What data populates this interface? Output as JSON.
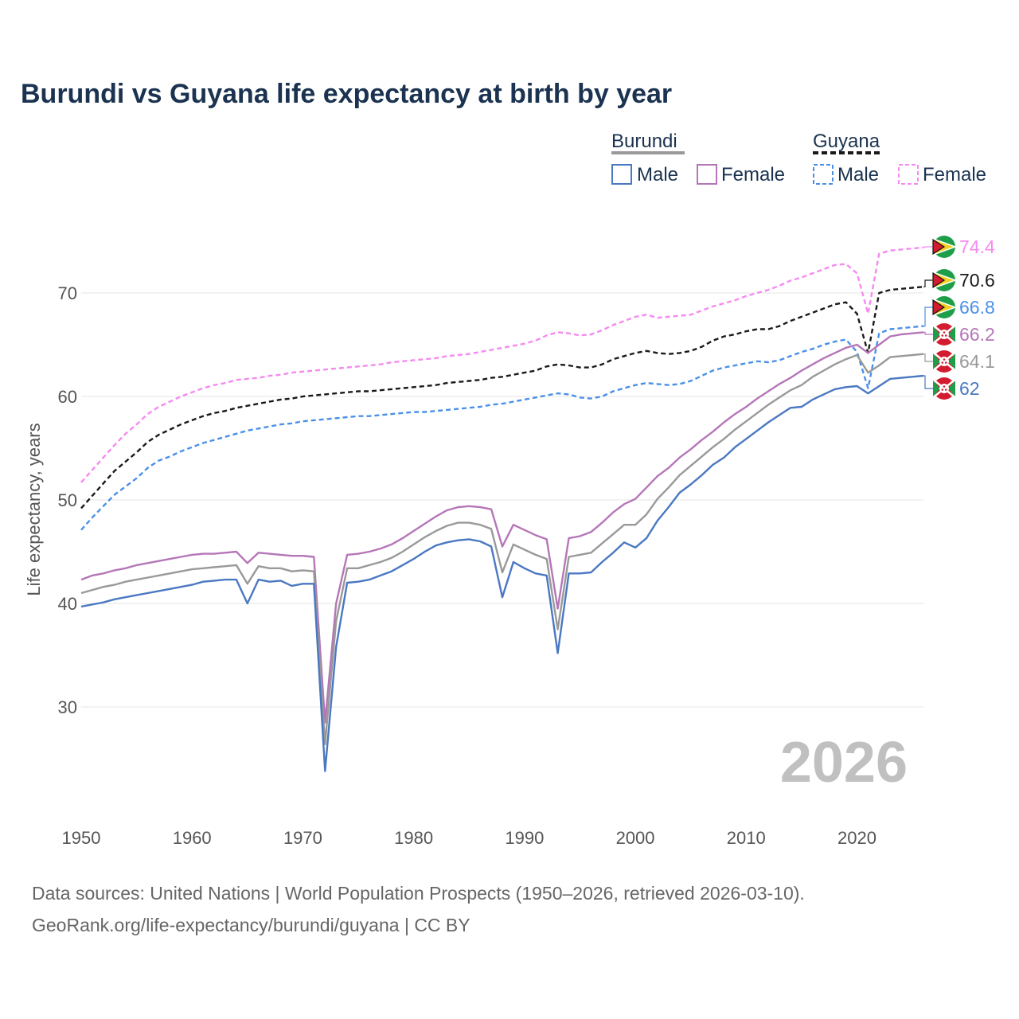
{
  "title": "Burundi vs Guyana life expectancy at birth by year",
  "legend": {
    "burundi_label": "Burundi",
    "guyana_label": "Guyana",
    "male_label": "Male",
    "female_label": "Female"
  },
  "current_year": "2026",
  "sources": {
    "line1": "Data sources: United Nations | World Population Prospects (1950–2026, retrieved 2026-03-10).",
    "line2": "GeoRank.org/life-expectancy/burundi/guyana | CC BY"
  },
  "colors": {
    "burundi_male": "#4a78c2",
    "burundi_female": "#b576b8",
    "burundi_total": "#999999",
    "guyana_male": "#4a90e8",
    "guyana_female": "#f58af0",
    "guyana_total": "#1a1a1a",
    "grid": "#e6e6e6"
  },
  "chart_data": {
    "type": "line",
    "ylabel": "Life expectancy, years",
    "xlabel": "",
    "xlim": [
      1950,
      2026
    ],
    "ylim": [
      20,
      80
    ],
    "x_ticks": [
      1950,
      1960,
      1970,
      1980,
      1990,
      2000,
      2010,
      2020
    ],
    "y_ticks": [
      30,
      40,
      50,
      60,
      70
    ],
    "grid": true,
    "x": [
      1950,
      1951,
      1952,
      1953,
      1954,
      1955,
      1956,
      1957,
      1958,
      1959,
      1960,
      1961,
      1962,
      1963,
      1964,
      1965,
      1966,
      1967,
      1968,
      1969,
      1970,
      1971,
      1972,
      1973,
      1974,
      1975,
      1976,
      1977,
      1978,
      1979,
      1980,
      1981,
      1982,
      1983,
      1984,
      1985,
      1986,
      1987,
      1988,
      1989,
      1990,
      1991,
      1992,
      1993,
      1994,
      1995,
      1996,
      1997,
      1998,
      1999,
      2000,
      2001,
      2002,
      2003,
      2004,
      2005,
      2006,
      2007,
      2008,
      2009,
      2010,
      2011,
      2012,
      2013,
      2014,
      2015,
      2016,
      2017,
      2018,
      2019,
      2020,
      2021,
      2022,
      2023,
      2024,
      2025,
      2026
    ],
    "series": [
      {
        "name": "Guyana Female",
        "country": "Guyana",
        "sex": "Female",
        "style": "dashed",
        "end_label": "74.4",
        "values": [
          51.7,
          52.9,
          54.1,
          55.3,
          56.4,
          57.3,
          58.3,
          59.0,
          59.5,
          60.0,
          60.4,
          60.8,
          61.1,
          61.3,
          61.6,
          61.7,
          61.8,
          62.0,
          62.1,
          62.3,
          62.4,
          62.5,
          62.6,
          62.7,
          62.8,
          62.9,
          63.0,
          63.1,
          63.3,
          63.4,
          63.5,
          63.6,
          63.7,
          63.9,
          64.0,
          64.1,
          64.3,
          64.5,
          64.7,
          64.9,
          65.1,
          65.4,
          65.9,
          66.2,
          66.1,
          65.9,
          66.0,
          66.4,
          66.9,
          67.3,
          67.7,
          67.9,
          67.6,
          67.7,
          67.8,
          67.9,
          68.3,
          68.7,
          69.0,
          69.3,
          69.7,
          70.0,
          70.3,
          70.7,
          71.2,
          71.5,
          71.9,
          72.3,
          72.7,
          72.8,
          71.9,
          68.0,
          73.8,
          74.1,
          74.2,
          74.3,
          74.4
        ]
      },
      {
        "name": "Guyana Total",
        "country": "Guyana",
        "sex": "Total",
        "style": "dashed",
        "end_label": "70.6",
        "values": [
          49.2,
          50.4,
          51.6,
          52.8,
          53.7,
          54.6,
          55.6,
          56.3,
          56.8,
          57.3,
          57.7,
          58.1,
          58.4,
          58.6,
          58.9,
          59.1,
          59.3,
          59.5,
          59.7,
          59.8,
          60.0,
          60.1,
          60.2,
          60.3,
          60.4,
          60.5,
          60.5,
          60.6,
          60.7,
          60.8,
          60.9,
          61.0,
          61.1,
          61.3,
          61.4,
          61.5,
          61.6,
          61.8,
          61.9,
          62.1,
          62.3,
          62.5,
          62.9,
          63.1,
          63.0,
          62.8,
          62.8,
          63.1,
          63.6,
          63.9,
          64.2,
          64.4,
          64.2,
          64.1,
          64.2,
          64.4,
          64.8,
          65.4,
          65.8,
          66.0,
          66.3,
          66.5,
          66.5,
          66.8,
          67.3,
          67.7,
          68.1,
          68.5,
          68.9,
          69.1,
          68.0,
          64.2,
          70.0,
          70.3,
          70.4,
          70.5,
          70.6
        ]
      },
      {
        "name": "Guyana Male",
        "country": "Guyana",
        "sex": "Male",
        "style": "dashed",
        "end_label": "66.8",
        "values": [
          47.1,
          48.3,
          49.4,
          50.5,
          51.3,
          52.1,
          53.1,
          53.8,
          54.2,
          54.7,
          55.1,
          55.5,
          55.8,
          56.1,
          56.4,
          56.7,
          56.9,
          57.1,
          57.3,
          57.4,
          57.6,
          57.7,
          57.8,
          57.9,
          58.0,
          58.1,
          58.1,
          58.2,
          58.3,
          58.4,
          58.5,
          58.5,
          58.6,
          58.7,
          58.8,
          58.9,
          59.0,
          59.2,
          59.3,
          59.5,
          59.7,
          59.9,
          60.1,
          60.3,
          60.2,
          59.9,
          59.8,
          60.0,
          60.5,
          60.8,
          61.1,
          61.3,
          61.2,
          61.1,
          61.2,
          61.5,
          62.0,
          62.5,
          62.8,
          63.0,
          63.2,
          63.4,
          63.3,
          63.5,
          63.9,
          64.3,
          64.6,
          65.0,
          65.3,
          65.5,
          64.3,
          60.8,
          66.1,
          66.5,
          66.6,
          66.7,
          66.8
        ]
      },
      {
        "name": "Burundi Female",
        "country": "Burundi",
        "sex": "Female",
        "style": "solid",
        "end_label": "66.2",
        "values": [
          42.3,
          42.7,
          42.9,
          43.2,
          43.4,
          43.7,
          43.9,
          44.1,
          44.3,
          44.5,
          44.7,
          44.8,
          44.8,
          44.9,
          45.0,
          43.9,
          44.9,
          44.8,
          44.7,
          44.6,
          44.6,
          44.5,
          28.5,
          40.0,
          44.7,
          44.8,
          45.0,
          45.3,
          45.7,
          46.3,
          47.0,
          47.7,
          48.4,
          49.0,
          49.3,
          49.4,
          49.3,
          49.1,
          45.5,
          47.6,
          47.1,
          46.6,
          46.2,
          39.5,
          46.3,
          46.5,
          46.9,
          47.8,
          48.8,
          49.6,
          50.1,
          51.2,
          52.3,
          53.1,
          54.1,
          54.9,
          55.8,
          56.6,
          57.5,
          58.3,
          59.0,
          59.8,
          60.5,
          61.2,
          61.8,
          62.5,
          63.1,
          63.7,
          64.2,
          64.7,
          65.0,
          64.2,
          65.0,
          65.8,
          66.0,
          66.1,
          66.2
        ]
      },
      {
        "name": "Burundi Total",
        "country": "Burundi",
        "sex": "Total",
        "style": "solid",
        "end_label": "64.1",
        "values": [
          41.0,
          41.3,
          41.6,
          41.8,
          42.1,
          42.3,
          42.5,
          42.7,
          42.9,
          43.1,
          43.3,
          43.4,
          43.5,
          43.6,
          43.7,
          41.9,
          43.6,
          43.4,
          43.4,
          43.1,
          43.2,
          43.1,
          26.4,
          38.3,
          43.4,
          43.4,
          43.7,
          44.0,
          44.4,
          45.0,
          45.7,
          46.4,
          47.0,
          47.5,
          47.8,
          47.8,
          47.6,
          47.2,
          43.0,
          45.7,
          45.2,
          44.7,
          44.3,
          37.5,
          44.5,
          44.7,
          44.9,
          45.8,
          46.7,
          47.6,
          47.6,
          48.6,
          50.1,
          51.2,
          52.4,
          53.3,
          54.2,
          55.1,
          55.9,
          56.8,
          57.6,
          58.4,
          59.2,
          59.9,
          60.6,
          61.1,
          61.9,
          62.5,
          63.1,
          63.6,
          64.0,
          62.3,
          63.0,
          63.8,
          63.9,
          64.0,
          64.1
        ]
      },
      {
        "name": "Burundi Male",
        "country": "Burundi",
        "sex": "Male",
        "style": "solid",
        "end_label": "62",
        "values": [
          39.7,
          39.9,
          40.1,
          40.4,
          40.6,
          40.8,
          41.0,
          41.2,
          41.4,
          41.6,
          41.8,
          42.1,
          42.2,
          42.3,
          42.3,
          40.0,
          42.3,
          42.1,
          42.2,
          41.7,
          41.9,
          41.9,
          23.8,
          35.8,
          42.0,
          42.1,
          42.3,
          42.7,
          43.1,
          43.7,
          44.3,
          45.0,
          45.6,
          45.9,
          46.1,
          46.2,
          46.0,
          45.5,
          40.6,
          44.0,
          43.4,
          42.9,
          42.7,
          35.2,
          42.9,
          42.9,
          43.0,
          44.0,
          44.9,
          45.9,
          45.4,
          46.3,
          48.0,
          49.3,
          50.7,
          51.5,
          52.4,
          53.4,
          54.1,
          55.1,
          55.9,
          56.7,
          57.5,
          58.2,
          58.9,
          59.0,
          59.7,
          60.2,
          60.7,
          60.9,
          61.0,
          60.3,
          61.0,
          61.7,
          61.8,
          61.9,
          62.0
        ]
      }
    ]
  }
}
